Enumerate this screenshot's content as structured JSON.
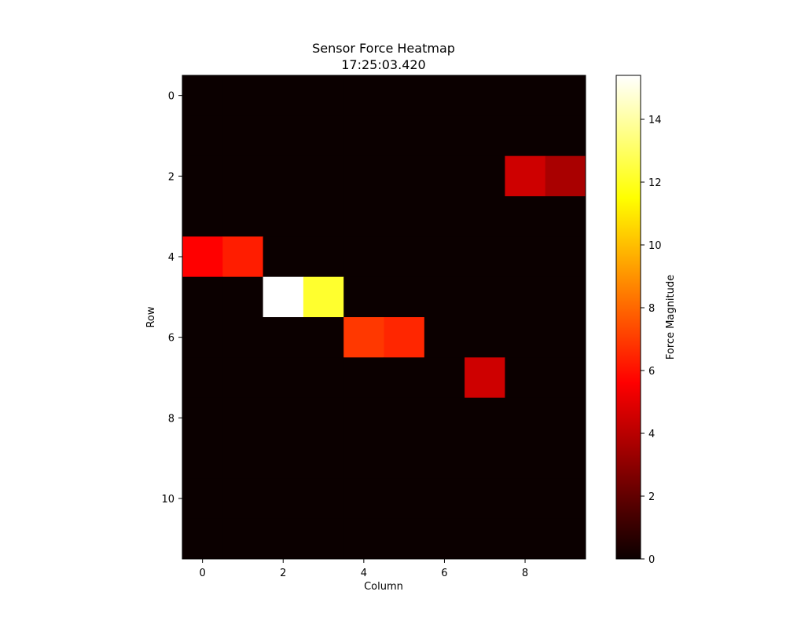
{
  "chart_data": {
    "type": "heatmap",
    "title": "Sensor Force Heatmap",
    "subtitle": "17:25:03.420",
    "xlabel": "Column",
    "ylabel": "Row",
    "colorbar_label": "Force Magnitude",
    "colormap": "hot",
    "rows": 12,
    "cols": 10,
    "vmin": 0,
    "vmax": 15.4,
    "x_ticks": [
      0,
      2,
      4,
      6,
      8
    ],
    "y_ticks": [
      0,
      2,
      4,
      6,
      8,
      10
    ],
    "colorbar_ticks": [
      0,
      2,
      4,
      6,
      8,
      10,
      12,
      14
    ],
    "values": [
      [
        0,
        0,
        0,
        0,
        0,
        0,
        0,
        0,
        0,
        0
      ],
      [
        0,
        0,
        0,
        0,
        0,
        0,
        0,
        0,
        0,
        0
      ],
      [
        0,
        0,
        0,
        0,
        0,
        0,
        0,
        0,
        4.3,
        3.5
      ],
      [
        0,
        0,
        0,
        0,
        0,
        0,
        0,
        0,
        0,
        0
      ],
      [
        5.6,
        6.3,
        0,
        0,
        0,
        0,
        0,
        0,
        0,
        0
      ],
      [
        0,
        0,
        15.4,
        12.2,
        0,
        0,
        0,
        0,
        0,
        0
      ],
      [
        0,
        0,
        0,
        0,
        6.9,
        6.5,
        0,
        0,
        0,
        0
      ],
      [
        0,
        0,
        0,
        0,
        0,
        0,
        0,
        4.3,
        0,
        0
      ],
      [
        0,
        0,
        0,
        0,
        0,
        0,
        0,
        0,
        0,
        0
      ],
      [
        0,
        0,
        0,
        0,
        0,
        0,
        0,
        0,
        0,
        0
      ],
      [
        0,
        0,
        0,
        0,
        0,
        0,
        0,
        0,
        0,
        0
      ],
      [
        0,
        0,
        0,
        0,
        0,
        0,
        0,
        0,
        0,
        0
      ]
    ]
  }
}
